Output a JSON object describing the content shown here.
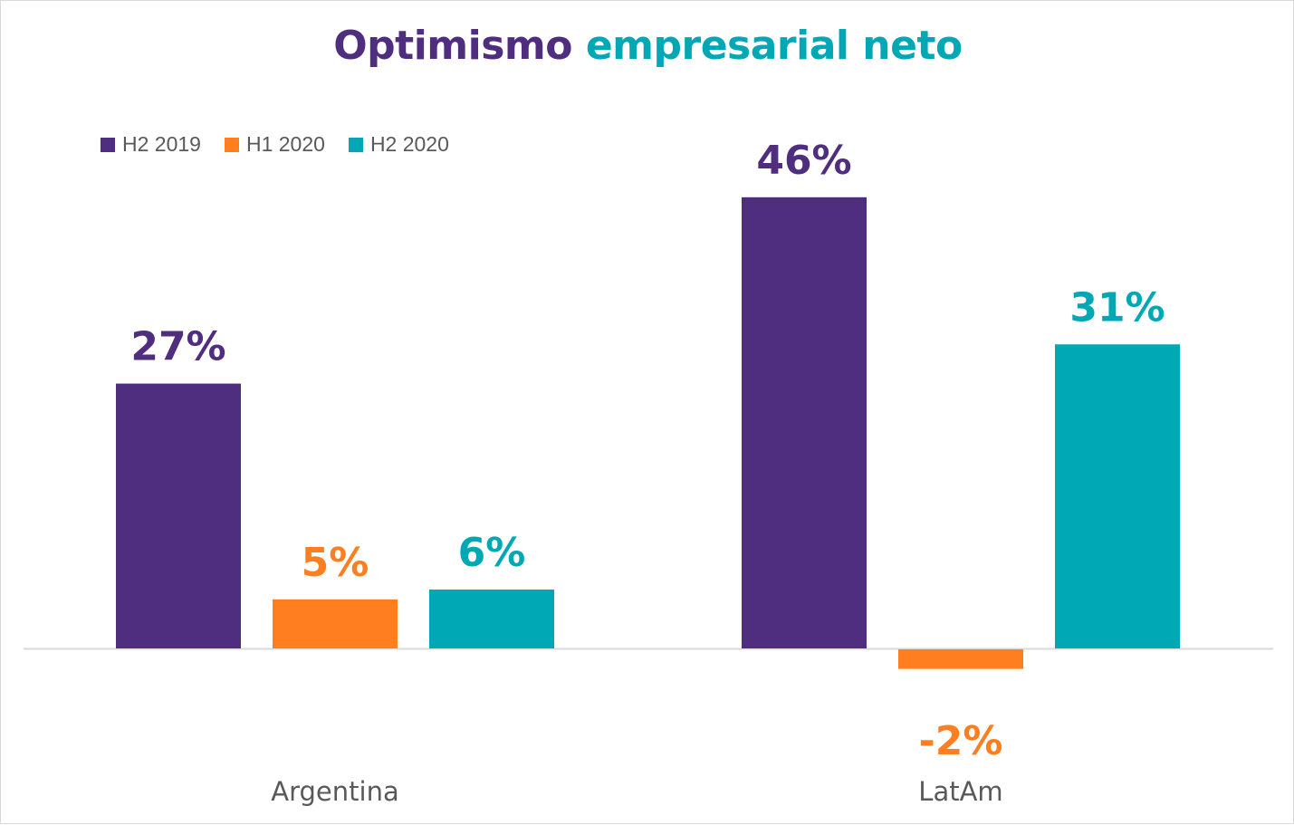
{
  "chart_data": {
    "type": "bar",
    "title_parts": [
      "Optimismo",
      "empresarial neto"
    ],
    "title_colors": [
      "#4f2d7f",
      "#00a7b5"
    ],
    "categories": [
      "Argentina",
      "LatAm"
    ],
    "series": [
      {
        "name": "H2 2019",
        "color": "#4f2d7f",
        "values": [
          27,
          46
        ],
        "labels": [
          "27%",
          "46%"
        ]
      },
      {
        "name": "H1 2020",
        "color": "#ff7f20",
        "values": [
          5,
          -2
        ],
        "labels": [
          "5%",
          "-2%"
        ]
      },
      {
        "name": "H2 2020",
        "color": "#00a7b5",
        "values": [
          6,
          31
        ],
        "labels": [
          "6%",
          "31%"
        ]
      }
    ],
    "unit": "%",
    "legend": "top-left",
    "grid": false,
    "ylim": [
      -2,
      46
    ]
  }
}
